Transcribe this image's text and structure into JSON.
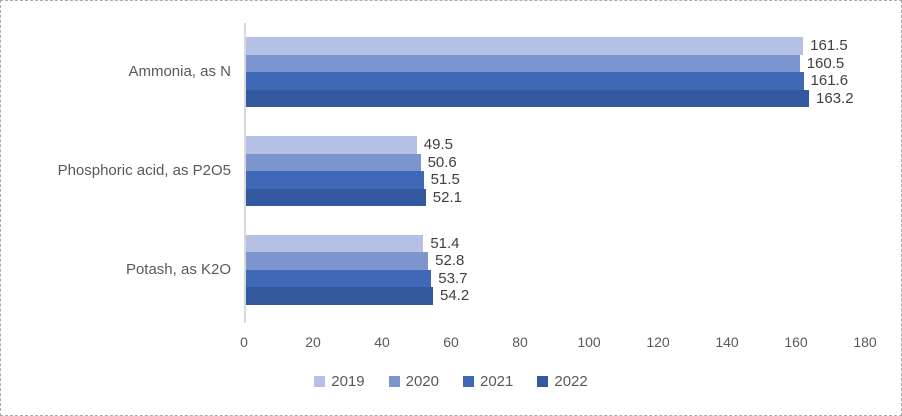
{
  "chart_data": {
    "type": "bar",
    "orientation": "horizontal",
    "title": "",
    "xlabel": "",
    "ylabel": "",
    "categories": [
      "Ammonia, as N",
      "Phosphoric acid, as P2O5",
      "Potash, as K2O"
    ],
    "series": [
      {
        "name": "2019",
        "color": "#b4c1e4",
        "values": [
          161.5,
          49.5,
          51.4
        ]
      },
      {
        "name": "2020",
        "color": "#7d95ce",
        "values": [
          160.5,
          50.6,
          52.8
        ]
      },
      {
        "name": "2021",
        "color": "#3f69b6",
        "values": [
          161.6,
          51.5,
          53.7
        ]
      },
      {
        "name": "2022",
        "color": "#34589d",
        "values": [
          163.2,
          52.1,
          54.2
        ]
      }
    ],
    "x_ticks": [
      "0",
      "20",
      "40",
      "60",
      "80",
      "100",
      "120",
      "140",
      "160",
      "180"
    ],
    "xlim": [
      0,
      180
    ],
    "grid": false,
    "legend_position": "bottom",
    "data_labels": true
  }
}
